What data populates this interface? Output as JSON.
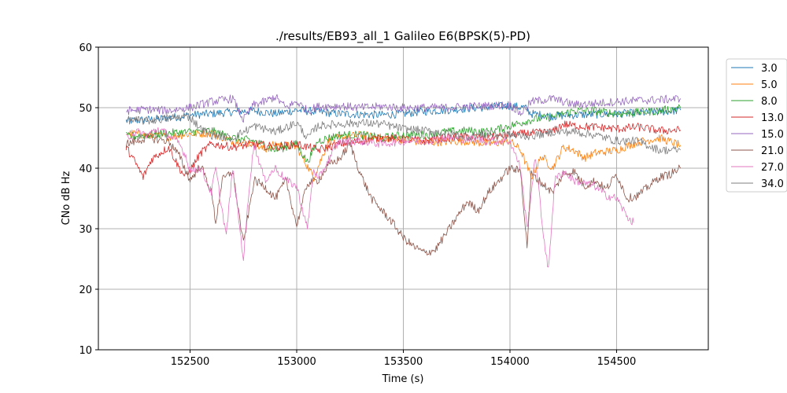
{
  "chart_data": {
    "type": "line",
    "title": "./results/EB93_all_1 Galileo E6(BPSK(5)-PD)",
    "xlabel": "Time (s)",
    "ylabel": "CNo dB Hz",
    "xlim": [
      152070,
      154930
    ],
    "ylim": [
      10,
      60
    ],
    "xticks": [
      152500,
      153000,
      153500,
      154000,
      154500
    ],
    "yticks": [
      10,
      20,
      30,
      40,
      50,
      60
    ],
    "grid": true,
    "legend_position": "outside-top-right",
    "series": [
      {
        "name": "3.0",
        "color": "#1f77b4",
        "points": [
          [
            152200,
            47.8
          ],
          [
            152300,
            48.0
          ],
          [
            152400,
            48.3
          ],
          [
            152500,
            48.8
          ],
          [
            152600,
            49.0
          ],
          [
            152700,
            49.3
          ],
          [
            152800,
            49.5
          ],
          [
            152900,
            49.0
          ],
          [
            153000,
            49.6
          ],
          [
            153100,
            49.3
          ],
          [
            153200,
            49.0
          ],
          [
            153300,
            48.9
          ],
          [
            153400,
            48.8
          ],
          [
            153500,
            49.0
          ],
          [
            153600,
            49.4
          ],
          [
            153700,
            49.6
          ],
          [
            153800,
            49.9
          ],
          [
            153900,
            50.1
          ],
          [
            154000,
            50.3
          ],
          [
            154070,
            50.0
          ],
          [
            154100,
            49.0
          ],
          [
            154200,
            48.6
          ],
          [
            154300,
            48.8
          ],
          [
            154400,
            48.9
          ],
          [
            154500,
            49.0
          ],
          [
            154600,
            49.1
          ],
          [
            154700,
            49.3
          ],
          [
            154800,
            49.6
          ]
        ]
      },
      {
        "name": "5.0",
        "color": "#ff7f0e",
        "points": [
          [
            152200,
            45.8
          ],
          [
            152300,
            45.5
          ],
          [
            152400,
            45.2
          ],
          [
            152500,
            45.7
          ],
          [
            152600,
            45.8
          ],
          [
            152700,
            44.5
          ],
          [
            152800,
            44.0
          ],
          [
            152850,
            43.0
          ],
          [
            152900,
            44.0
          ],
          [
            153000,
            43.5
          ],
          [
            153080,
            38.5
          ],
          [
            153150,
            44.5
          ],
          [
            153200,
            45.0
          ],
          [
            153300,
            45.5
          ],
          [
            153400,
            45.0
          ],
          [
            153500,
            44.8
          ],
          [
            153600,
            44.2
          ],
          [
            153700,
            44.4
          ],
          [
            153800,
            44.5
          ],
          [
            153900,
            44.0
          ],
          [
            154000,
            44.5
          ],
          [
            154050,
            43.0
          ],
          [
            154100,
            38.5
          ],
          [
            154150,
            42.0
          ],
          [
            154200,
            40.0
          ],
          [
            154250,
            43.5
          ],
          [
            154300,
            43.0
          ],
          [
            154350,
            41.7
          ],
          [
            154400,
            42.5
          ],
          [
            154500,
            43.0
          ],
          [
            154600,
            44.3
          ],
          [
            154700,
            45.0
          ],
          [
            154800,
            43.8
          ]
        ]
      },
      {
        "name": "8.0",
        "color": "#2ca02c",
        "points": [
          [
            152200,
            45.2
          ],
          [
            152300,
            45.5
          ],
          [
            152400,
            45.8
          ],
          [
            152500,
            46.0
          ],
          [
            152600,
            46.2
          ],
          [
            152700,
            45.0
          ],
          [
            152800,
            44.5
          ],
          [
            152900,
            43.0
          ],
          [
            153000,
            44.0
          ],
          [
            153050,
            41.0
          ],
          [
            153100,
            44.5
          ],
          [
            153200,
            45.5
          ],
          [
            153300,
            45.5
          ],
          [
            153400,
            45.0
          ],
          [
            153500,
            45.5
          ],
          [
            153600,
            45.5
          ],
          [
            153700,
            46.0
          ],
          [
            153800,
            46.2
          ],
          [
            153900,
            46.0
          ],
          [
            154000,
            47.0
          ],
          [
            154100,
            48.0
          ],
          [
            154200,
            48.5
          ],
          [
            154300,
            49.5
          ],
          [
            154400,
            49.5
          ],
          [
            154500,
            49.0
          ],
          [
            154600,
            49.2
          ],
          [
            154700,
            49.5
          ],
          [
            154800,
            50.0
          ]
        ]
      },
      {
        "name": "13.0",
        "color": "#d62728",
        "points": [
          [
            152200,
            43.5
          ],
          [
            152250,
            40.5
          ],
          [
            152280,
            38.5
          ],
          [
            152320,
            41.5
          ],
          [
            152400,
            43.5
          ],
          [
            152450,
            40.0
          ],
          [
            152480,
            38.5
          ],
          [
            152550,
            42.5
          ],
          [
            152600,
            44.0
          ],
          [
            152700,
            43.5
          ],
          [
            152800,
            44.0
          ],
          [
            152900,
            43.5
          ],
          [
            153000,
            44.0
          ],
          [
            153100,
            43.0
          ],
          [
            153200,
            44.0
          ],
          [
            153300,
            44.5
          ],
          [
            153400,
            45.0
          ],
          [
            153500,
            44.8
          ],
          [
            153600,
            44.5
          ],
          [
            153700,
            45.0
          ],
          [
            153800,
            45.2
          ],
          [
            153900,
            45.0
          ],
          [
            154000,
            45.5
          ],
          [
            154100,
            45.8
          ],
          [
            154200,
            46.0
          ],
          [
            154250,
            47.3
          ],
          [
            154300,
            47.0
          ],
          [
            154400,
            46.8
          ],
          [
            154500,
            46.5
          ],
          [
            154600,
            46.8
          ],
          [
            154700,
            46.2
          ],
          [
            154800,
            46.3
          ]
        ]
      },
      {
        "name": "15.0",
        "color": "#9467bd",
        "points": [
          [
            152200,
            49.5
          ],
          [
            152300,
            49.7
          ],
          [
            152400,
            49.5
          ],
          [
            152500,
            50.0
          ],
          [
            152600,
            51.0
          ],
          [
            152700,
            51.5
          ],
          [
            152750,
            48.0
          ],
          [
            152800,
            50.5
          ],
          [
            152850,
            51.0
          ],
          [
            152900,
            51.8
          ],
          [
            152950,
            50.0
          ],
          [
            153000,
            51.0
          ],
          [
            153050,
            49.5
          ],
          [
            153100,
            50.2
          ],
          [
            153200,
            50.3
          ],
          [
            153300,
            50.0
          ],
          [
            153400,
            50.2
          ],
          [
            153500,
            50.0
          ],
          [
            153600,
            50.0
          ],
          [
            153700,
            50.0
          ],
          [
            153800,
            50.2
          ],
          [
            153900,
            50.3
          ],
          [
            154000,
            50.5
          ],
          [
            154050,
            49.0
          ],
          [
            154100,
            51.0
          ],
          [
            154200,
            51.5
          ],
          [
            154300,
            50.5
          ],
          [
            154400,
            50.7
          ],
          [
            154500,
            51.0
          ],
          [
            154600,
            51.2
          ],
          [
            154700,
            51.3
          ],
          [
            154800,
            51.5
          ]
        ]
      },
      {
        "name": "21.0",
        "color": "#8c564b",
        "points": [
          [
            152200,
            44.0
          ],
          [
            152300,
            45.0
          ],
          [
            152400,
            44.5
          ],
          [
            152450,
            42.0
          ],
          [
            152500,
            38.0
          ],
          [
            152550,
            40.5
          ],
          [
            152600,
            36.0
          ],
          [
            152620,
            31.0
          ],
          [
            152650,
            38.0
          ],
          [
            152700,
            39.5
          ],
          [
            152750,
            27.5
          ],
          [
            152800,
            38.0
          ],
          [
            152850,
            37.0
          ],
          [
            152900,
            35.0
          ],
          [
            152950,
            38.0
          ],
          [
            153000,
            30.5
          ],
          [
            153050,
            37.5
          ],
          [
            153100,
            38.0
          ],
          [
            153150,
            40.5
          ],
          [
            153200,
            41.5
          ],
          [
            153250,
            44.0
          ],
          [
            153300,
            39.0
          ],
          [
            153350,
            35.0
          ],
          [
            153400,
            33.0
          ],
          [
            153450,
            31.0
          ],
          [
            153500,
            28.5
          ],
          [
            153550,
            27.0
          ],
          [
            153600,
            26.0
          ],
          [
            153650,
            26.5
          ],
          [
            153800,
            34.5
          ],
          [
            153850,
            33.0
          ],
          [
            153900,
            36.0
          ],
          [
            153950,
            38.0
          ],
          [
            154000,
            40.0
          ],
          [
            154050,
            39.5
          ],
          [
            154080,
            27.0
          ],
          [
            154100,
            39.0
          ],
          [
            154150,
            37.5
          ],
          [
            154200,
            36.0
          ],
          [
            154250,
            39.0
          ],
          [
            154300,
            39.5
          ],
          [
            154350,
            37.0
          ],
          [
            154400,
            38.0
          ],
          [
            154450,
            36.5
          ],
          [
            154500,
            39.0
          ],
          [
            154550,
            35.0
          ],
          [
            154600,
            35.5
          ],
          [
            154650,
            37.0
          ],
          [
            154700,
            38.5
          ],
          [
            154750,
            39.0
          ],
          [
            154800,
            40.0
          ]
        ]
      },
      {
        "name": "27.0",
        "color": "#e377c2",
        "points": [
          [
            152200,
            45.0
          ],
          [
            152250,
            46.0
          ],
          [
            152300,
            45.5
          ],
          [
            152350,
            46.5
          ],
          [
            152400,
            45.5
          ],
          [
            152450,
            44.0
          ],
          [
            152480,
            42.0
          ],
          [
            152500,
            39.5
          ],
          [
            152550,
            40.0
          ],
          [
            152600,
            36.0
          ],
          [
            152620,
            40.0
          ],
          [
            152650,
            33.0
          ],
          [
            152670,
            29.0
          ],
          [
            152700,
            40.0
          ],
          [
            152720,
            34.0
          ],
          [
            152750,
            25.0
          ],
          [
            152780,
            38.0
          ],
          [
            152800,
            44.0
          ],
          [
            152850,
            38.0
          ],
          [
            152900,
            40.0
          ],
          [
            152950,
            38.0
          ],
          [
            153000,
            37.0
          ],
          [
            153050,
            30.0
          ],
          [
            153080,
            40.0
          ],
          [
            153100,
            38.0
          ],
          [
            153150,
            41.5
          ],
          [
            153200,
            44.5
          ],
          [
            153300,
            44.5
          ],
          [
            153400,
            44.0
          ],
          [
            153500,
            44.5
          ],
          [
            153600,
            44.5
          ],
          [
            153700,
            45.0
          ],
          [
            153800,
            44.8
          ],
          [
            153900,
            44.5
          ],
          [
            154000,
            44.5
          ],
          [
            154050,
            40.0
          ],
          [
            154080,
            30.0
          ],
          [
            154120,
            42.0
          ],
          [
            154150,
            31.0
          ],
          [
            154180,
            23.0
          ],
          [
            154210,
            38.0
          ],
          [
            154250,
            39.5
          ],
          [
            154300,
            38.0
          ],
          [
            154350,
            37.5
          ],
          [
            154400,
            37.0
          ],
          [
            154450,
            35.5
          ],
          [
            154500,
            35.0
          ],
          [
            154550,
            32.0
          ],
          [
            154580,
            31.0
          ]
        ]
      },
      {
        "name": "34.0",
        "color": "#7f7f7f",
        "points": [
          [
            152200,
            48.0
          ],
          [
            152300,
            47.8
          ],
          [
            152400,
            48.3
          ],
          [
            152500,
            48.5
          ],
          [
            152550,
            46.5
          ],
          [
            152600,
            45.5
          ],
          [
            152700,
            45.0
          ],
          [
            152800,
            47.0
          ],
          [
            152900,
            46.0
          ],
          [
            153000,
            47.5
          ],
          [
            153050,
            45.0
          ],
          [
            153100,
            47.0
          ],
          [
            153200,
            47.3
          ],
          [
            153300,
            47.5
          ],
          [
            153400,
            47.3
          ],
          [
            153500,
            46.5
          ],
          [
            153600,
            46.2
          ],
          [
            153700,
            45.8
          ],
          [
            153800,
            45.3
          ],
          [
            153900,
            45.6
          ],
          [
            154000,
            45.5
          ],
          [
            154100,
            45.3
          ],
          [
            154200,
            46.0
          ],
          [
            154300,
            46.0
          ],
          [
            154400,
            45.5
          ],
          [
            154500,
            44.5
          ],
          [
            154600,
            44.5
          ],
          [
            154700,
            43.0
          ],
          [
            154800,
            43.0
          ]
        ]
      }
    ]
  }
}
